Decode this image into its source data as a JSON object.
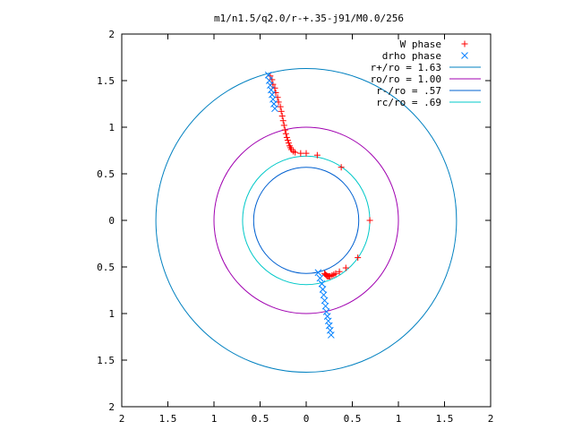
{
  "chart_data": {
    "type": "scatter",
    "title": "m1/n1.5/q2.0/r-+.35-j91/M0.0/256",
    "xlim": [
      -2,
      2
    ],
    "ylim": [
      -2,
      2
    ],
    "x_ticks": [
      -2,
      -1.5,
      -1,
      -0.5,
      0,
      0.5,
      1,
      1.5,
      2
    ],
    "y_ticks": [
      -2,
      -1.5,
      -1,
      -0.5,
      0,
      0.5,
      1,
      1.5,
      2
    ],
    "x_tick_labels": [
      "2",
      "1.5",
      "1",
      "0.5",
      "0",
      "0.5",
      "1",
      "1.5",
      "2"
    ],
    "y_tick_labels": [
      "2",
      "1.5",
      "1",
      "0.5",
      "0",
      "0.5",
      "1",
      "1.5",
      "2"
    ],
    "grid": false,
    "legend_position": "top-right",
    "points": [
      {
        "name": "W phase",
        "marker": "plus",
        "color": "#ff0000",
        "x": [
          0.69,
          0.38,
          0.12,
          0.0,
          -0.06,
          -0.12,
          -0.14,
          -0.16,
          -0.17,
          -0.18,
          -0.19,
          -0.2,
          -0.21,
          -0.22,
          -0.23,
          -0.24,
          -0.25,
          -0.26,
          -0.27,
          -0.28,
          -0.3,
          -0.31,
          -0.33,
          -0.34,
          -0.36,
          -0.37,
          -0.39,
          0.56,
          0.43,
          0.36,
          0.32,
          0.3,
          0.28,
          0.26,
          0.25,
          0.24,
          0.23,
          0.22,
          0.21,
          0.2
        ],
        "y": [
          0.0,
          0.57,
          0.7,
          0.72,
          0.72,
          0.73,
          0.74,
          0.76,
          0.78,
          0.8,
          0.83,
          0.86,
          0.89,
          0.93,
          0.97,
          1.02,
          1.07,
          1.12,
          1.17,
          1.22,
          1.27,
          1.32,
          1.37,
          1.42,
          1.46,
          1.51,
          1.55,
          -0.4,
          -0.51,
          -0.55,
          -0.57,
          -0.58,
          -0.59,
          -0.6,
          -0.6,
          -0.6,
          -0.6,
          -0.59,
          -0.58,
          -0.57
        ]
      },
      {
        "name": "drho phase",
        "marker": "cross",
        "color": "#0080ff",
        "x": [
          -0.34,
          -0.35,
          -0.36,
          -0.37,
          -0.38,
          -0.39,
          -0.4,
          -0.41,
          0.13,
          0.15,
          0.17,
          0.18,
          0.19,
          0.2,
          0.21,
          0.22,
          0.23,
          0.24,
          0.25,
          0.26,
          0.27
        ],
        "y": [
          1.2,
          1.25,
          1.3,
          1.35,
          1.4,
          1.45,
          1.5,
          1.56,
          -0.56,
          -0.62,
          -0.68,
          -0.74,
          -0.8,
          -0.86,
          -0.92,
          -0.98,
          -1.03,
          -1.08,
          -1.13,
          -1.18,
          -1.23
        ]
      }
    ],
    "circles": [
      {
        "name": "r+/ro = 1.63",
        "r": 1.63,
        "color": "#0080c0"
      },
      {
        "name": "ro/ro = 1.00",
        "r": 1.0,
        "color": "#a000b0"
      },
      {
        "name": "r-/ro = .57",
        "r": 0.57,
        "color": "#0060d0"
      },
      {
        "name": "rc/ro = .69",
        "r": 0.69,
        "color": "#00c8c8"
      }
    ]
  }
}
